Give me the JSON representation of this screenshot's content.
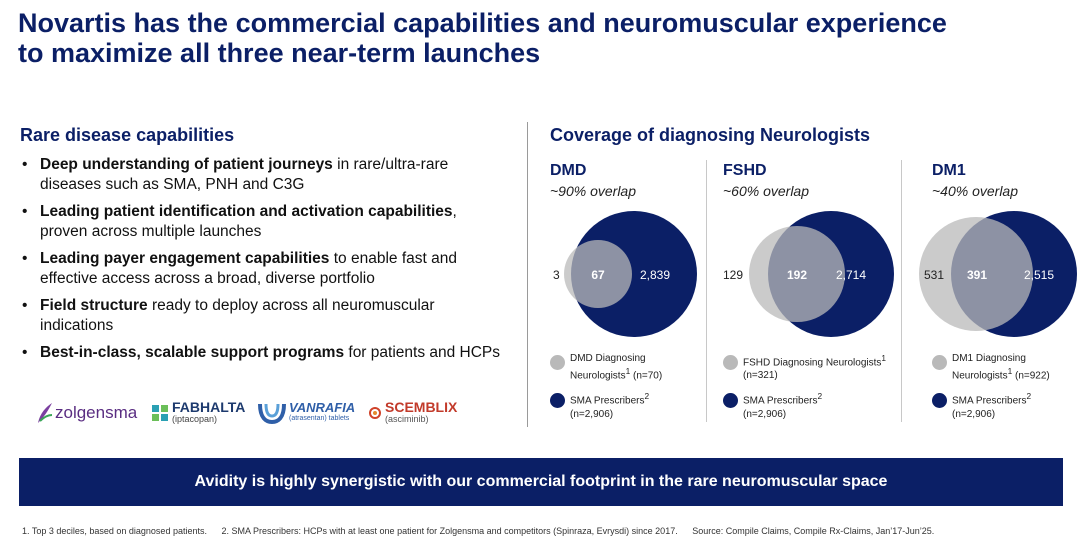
{
  "title": {
    "line1": "Novartis has the commercial capabilities and neuromuscular experience",
    "line2": "to maximize all three near-term launches"
  },
  "left": {
    "heading": "Rare disease capabilities",
    "bullets": [
      {
        "bold": "Deep understanding of patient journeys",
        "rest": " in rare/ultra-rare diseases such as SMA, PNH and C3G"
      },
      {
        "bold": "Leading patient identification and activation capabilities",
        "rest": ", proven across multiple launches"
      },
      {
        "bold": "Leading payer engagement capabilities",
        "rest": " to enable fast and effective access across a broad, diverse portfolio"
      },
      {
        "bold": "Field structure",
        "rest": " ready to deploy across all neuromuscular indications"
      },
      {
        "bold": "Best-in-class, scalable support programs",
        "rest": " for patients and HCPs"
      }
    ],
    "logos": {
      "zolgensma": "zolgensma",
      "fabhalta": "FABHALTA",
      "fabhalta_sub": "(iptacopan)",
      "vanrafia": "VANRAFIA",
      "vanrafia_sub": "(atrasentan) tablets",
      "scemblix": "SCEMBLIX",
      "scemblix_sub": "(asciminib)"
    }
  },
  "right": {
    "heading": "Coverage of diagnosing Neurologists",
    "columns": [
      {
        "name": "DMD",
        "overlap": "~90% overlap",
        "left_only": "3",
        "both": "67",
        "right_only": "2,839",
        "legend1": "DMD Diagnosing Neurologists",
        "legend1_n": " (n=70)",
        "legend2": "SMA Prescribers",
        "legend2_n": "(n=2,906)"
      },
      {
        "name": "FSHD",
        "overlap": "~60% overlap",
        "left_only": "129",
        "both": "192",
        "right_only": "2,714",
        "legend1": "FSHD Diagnosing Neurologists",
        "legend1_n": " (n=321)",
        "legend2": "SMA Prescribers",
        "legend2_n": "(n=2,906)"
      },
      {
        "name": "DM1",
        "overlap": "~40% overlap",
        "left_only": "531",
        "both": "391",
        "right_only": "2,515",
        "legend1": "DM1 Diagnosing Neurologists",
        "legend1_n": " (n=922)",
        "legend2": "SMA Prescribers",
        "legend2_n": "(n=2,906)"
      }
    ]
  },
  "banner": "Avidity is highly synergistic with our commercial footprint in the rare neuromuscular space",
  "footnotes": {
    "f1": "1. Top 3 deciles, based on diagnosed patients.",
    "f2": "2. SMA Prescribers: HCPs with at least one patient for Zolgensma and competitors (Spinraza, Evrysdi) since 2017.",
    "f3": "Source: Compile Claims, Compile Rx-Claims, Jan’17-Jun’25."
  },
  "colors": {
    "navy": "#0b1f66",
    "gray": "#b9b9b9"
  }
}
